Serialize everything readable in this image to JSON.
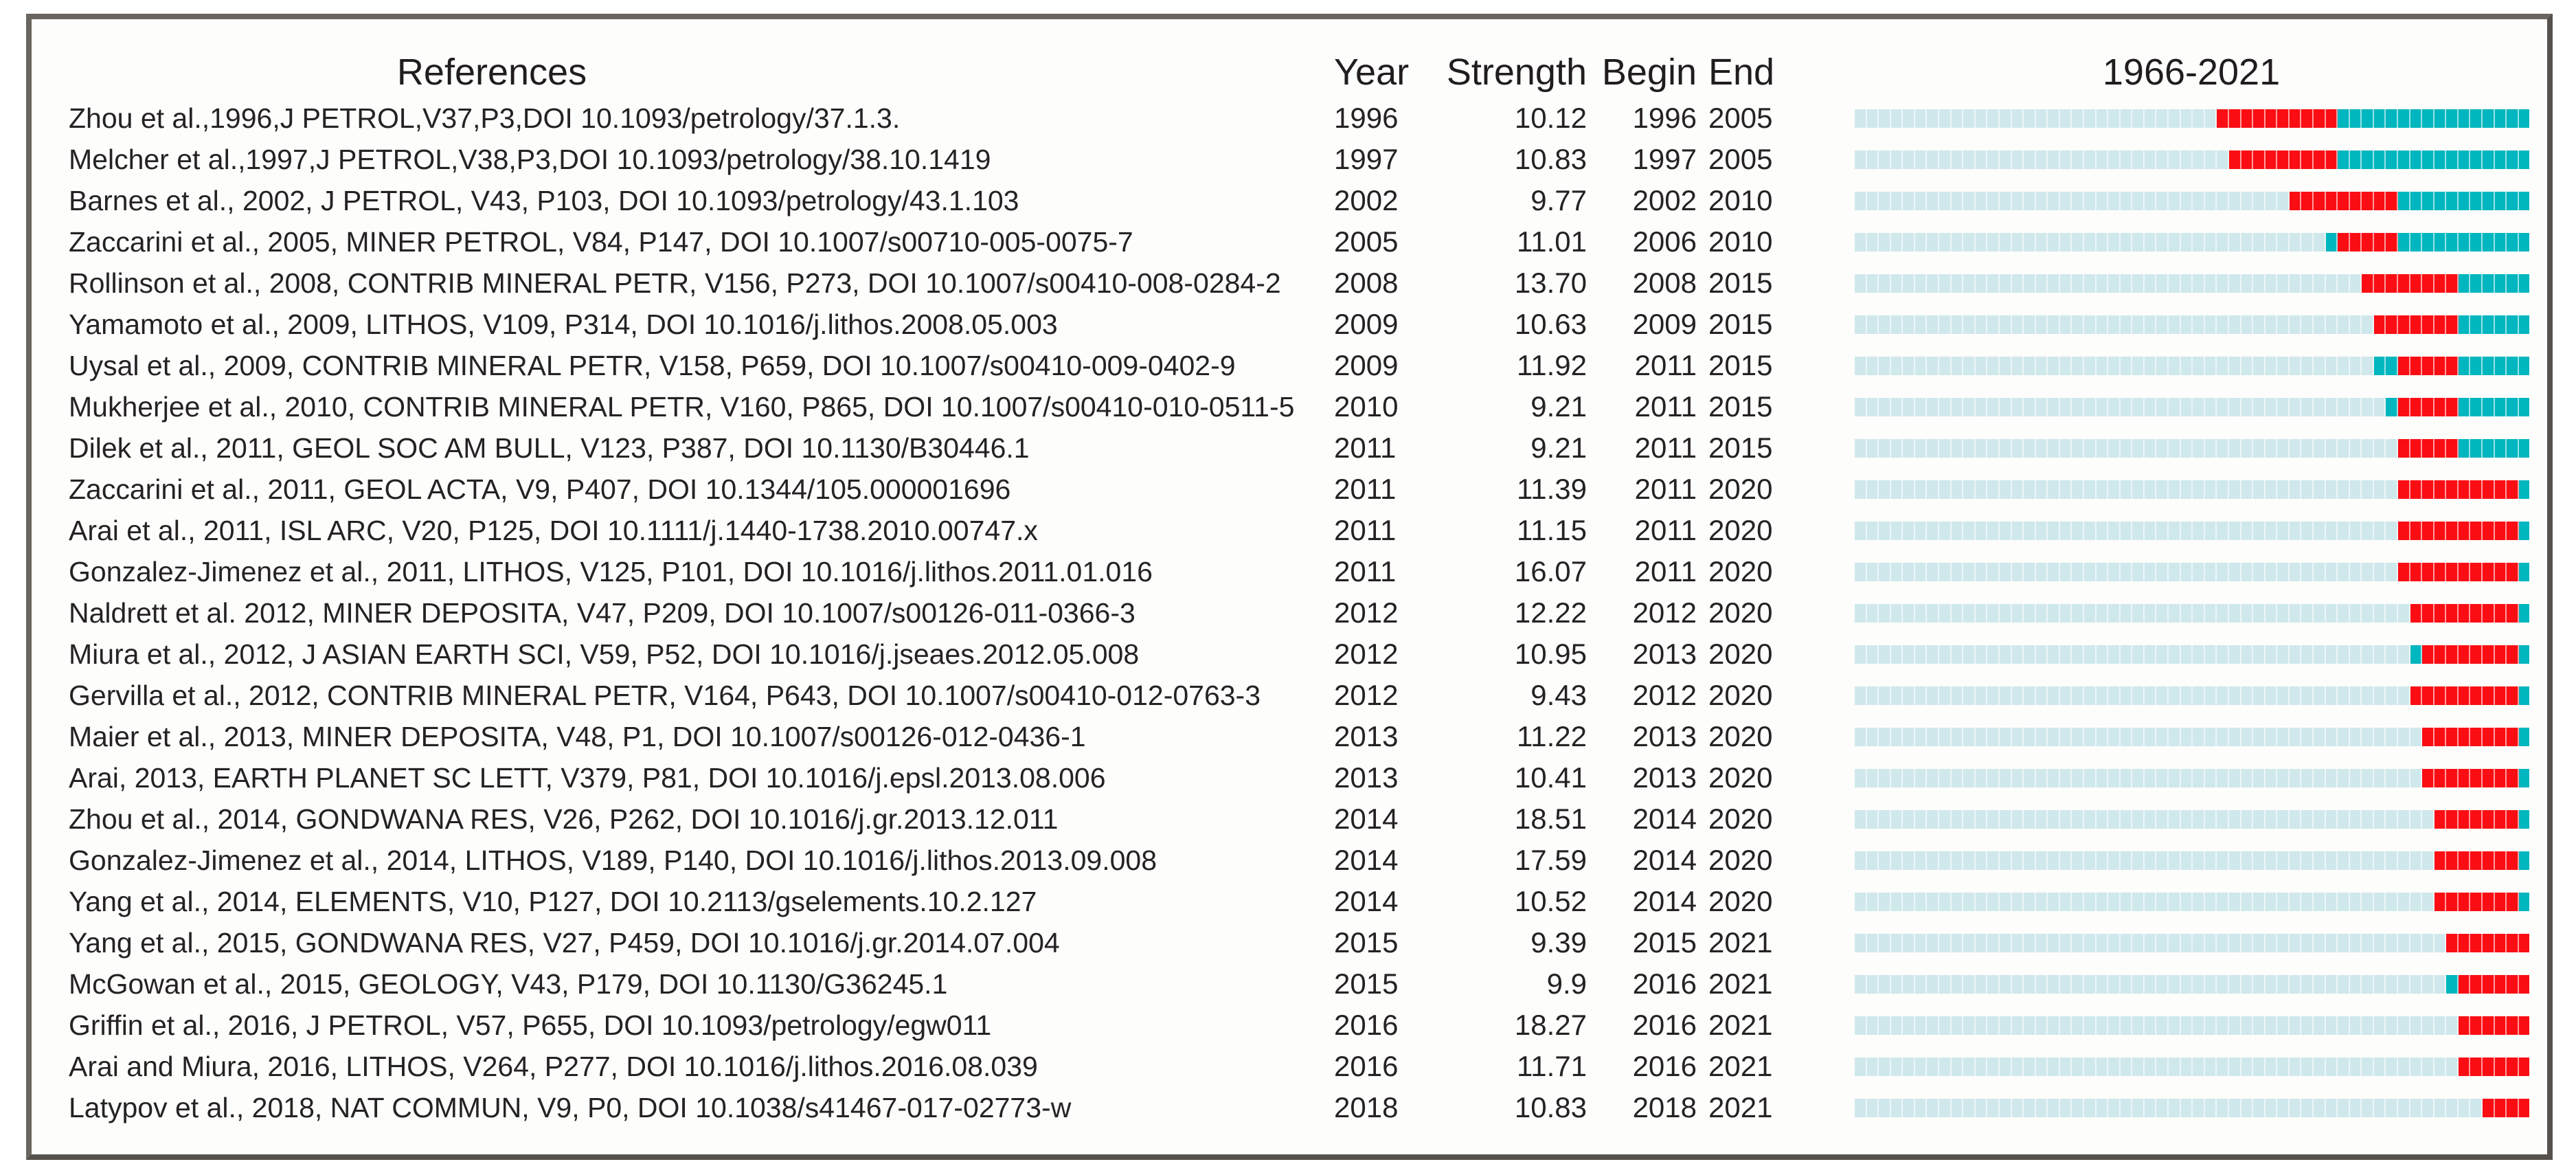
{
  "headers": {
    "references": "References",
    "year": "Year",
    "strength": "Strength",
    "begin": "Begin",
    "end": "End",
    "timeline": "1966-2021"
  },
  "colors": {
    "pre_publication": "#cfe8eb",
    "burst": "#fa0e13",
    "active": "#00b6bf",
    "frame_border": "#6a6560",
    "text": "#262223"
  },
  "chart_data": {
    "type": "table",
    "columns": [
      "References",
      "Year",
      "Strength",
      "Begin",
      "End"
    ],
    "timeline_title": "1966-2021",
    "timeline_range": [
      1966,
      2021
    ],
    "legend": {
      "pale_segment": "years before publication",
      "red_segment": "citation burst period (Begin-End)",
      "teal_segment": "years after publication outside burst"
    },
    "rows": [
      {
        "ref": "Zhou et al.,1996,J PETROL,V37,P3,DOI 10.1093/petrology/37.1.3.",
        "year": 1996,
        "strength": "10.12",
        "begin": 1996,
        "end": 2005
      },
      {
        "ref": "Melcher et al.,1997,J PETROL,V38,P3,DOI 10.1093/petrology/38.10.1419",
        "year": 1997,
        "strength": "10.83",
        "begin": 1997,
        "end": 2005
      },
      {
        "ref": "Barnes et al., 2002, J PETROL, V43, P103, DOI 10.1093/petrology/43.1.103",
        "year": 2002,
        "strength": "9.77",
        "begin": 2002,
        "end": 2010
      },
      {
        "ref": "Zaccarini et al., 2005, MINER PETROL, V84, P147, DOI 10.1007/s00710-005-0075-7",
        "year": 2005,
        "strength": "11.01",
        "begin": 2006,
        "end": 2010
      },
      {
        "ref": "Rollinson et al., 2008, CONTRIB MINERAL PETR, V156, P273, DOI 10.1007/s00410-008-0284-2",
        "year": 2008,
        "strength": "13.70",
        "begin": 2008,
        "end": 2015
      },
      {
        "ref": "Yamamoto et al., 2009, LITHOS, V109, P314, DOI 10.1016/j.lithos.2008.05.003",
        "year": 2009,
        "strength": "10.63",
        "begin": 2009,
        "end": 2015
      },
      {
        "ref": "Uysal et al., 2009, CONTRIB MINERAL PETR, V158, P659, DOI 10.1007/s00410-009-0402-9",
        "year": 2009,
        "strength": "11.92",
        "begin": 2011,
        "end": 2015
      },
      {
        "ref": "Mukherjee et al., 2010, CONTRIB MINERAL PETR, V160, P865, DOI 10.1007/s00410-010-0511-5",
        "year": 2010,
        "strength": "9.21",
        "begin": 2011,
        "end": 2015
      },
      {
        "ref": "Dilek et al., 2011, GEOL SOC AM BULL, V123, P387, DOI 10.1130/B30446.1",
        "year": 2011,
        "strength": "9.21",
        "begin": 2011,
        "end": 2015
      },
      {
        "ref": "Zaccarini et al., 2011, GEOL ACTA, V9, P407, DOI 10.1344/105.000001696",
        "year": 2011,
        "strength": "11.39",
        "begin": 2011,
        "end": 2020
      },
      {
        "ref": "Arai et al., 2011, ISL ARC, V20, P125, DOI 10.1111/j.1440-1738.2010.00747.x",
        "year": 2011,
        "strength": "11.15",
        "begin": 2011,
        "end": 2020
      },
      {
        "ref": "Gonzalez-Jimenez et al., 2011, LITHOS, V125, P101, DOI 10.1016/j.lithos.2011.01.016",
        "year": 2011,
        "strength": "16.07",
        "begin": 2011,
        "end": 2020
      },
      {
        "ref": "Naldrett et al. 2012, MINER DEPOSITA, V47, P209, DOI 10.1007/s00126-011-0366-3",
        "year": 2012,
        "strength": "12.22",
        "begin": 2012,
        "end": 2020
      },
      {
        "ref": "Miura et al., 2012, J ASIAN EARTH SCI, V59, P52, DOI 10.1016/j.jseaes.2012.05.008",
        "year": 2012,
        "strength": "10.95",
        "begin": 2013,
        "end": 2020
      },
      {
        "ref": "Gervilla et al., 2012, CONTRIB MINERAL PETR, V164, P643, DOI 10.1007/s00410-012-0763-3",
        "year": 2012,
        "strength": "9.43",
        "begin": 2012,
        "end": 2020
      },
      {
        "ref": "Maier et al., 2013, MINER DEPOSITA, V48, P1, DOI 10.1007/s00126-012-0436-1",
        "year": 2013,
        "strength": "11.22",
        "begin": 2013,
        "end": 2020
      },
      {
        "ref": "Arai, 2013, EARTH PLANET SC LETT, V379, P81, DOI 10.1016/j.epsl.2013.08.006",
        "year": 2013,
        "strength": "10.41",
        "begin": 2013,
        "end": 2020
      },
      {
        "ref": "Zhou et al., 2014, GONDWANA RES, V26, P262, DOI 10.1016/j.gr.2013.12.011",
        "year": 2014,
        "strength": "18.51",
        "begin": 2014,
        "end": 2020
      },
      {
        "ref": "Gonzalez-Jimenez et al., 2014, LITHOS, V189, P140, DOI 10.1016/j.lithos.2013.09.008",
        "year": 2014,
        "strength": "17.59",
        "begin": 2014,
        "end": 2020
      },
      {
        "ref": "Yang et al., 2014, ELEMENTS, V10, P127, DOI 10.2113/gselements.10.2.127",
        "year": 2014,
        "strength": "10.52",
        "begin": 2014,
        "end": 2020
      },
      {
        "ref": "Yang et al., 2015, GONDWANA RES, V27, P459, DOI 10.1016/j.gr.2014.07.004",
        "year": 2015,
        "strength": "9.39",
        "begin": 2015,
        "end": 2021
      },
      {
        "ref": "McGowan et al., 2015, GEOLOGY, V43, P179, DOI 10.1130/G36245.1",
        "year": 2015,
        "strength": "9.9",
        "begin": 2016,
        "end": 2021
      },
      {
        "ref": "Griffin et al., 2016, J PETROL, V57, P655, DOI 10.1093/petrology/egw011",
        "year": 2016,
        "strength": "18.27",
        "begin": 2016,
        "end": 2021
      },
      {
        "ref": "Arai and Miura, 2016, LITHOS, V264, P277, DOI 10.1016/j.lithos.2016.08.039",
        "year": 2016,
        "strength": "11.71",
        "begin": 2016,
        "end": 2021
      },
      {
        "ref": "Latypov et al., 2018, NAT COMMUN, V9, P0, DOI 10.1038/s41467-017-02773-w",
        "year": 2018,
        "strength": "10.83",
        "begin": 2018,
        "end": 2021
      }
    ]
  }
}
